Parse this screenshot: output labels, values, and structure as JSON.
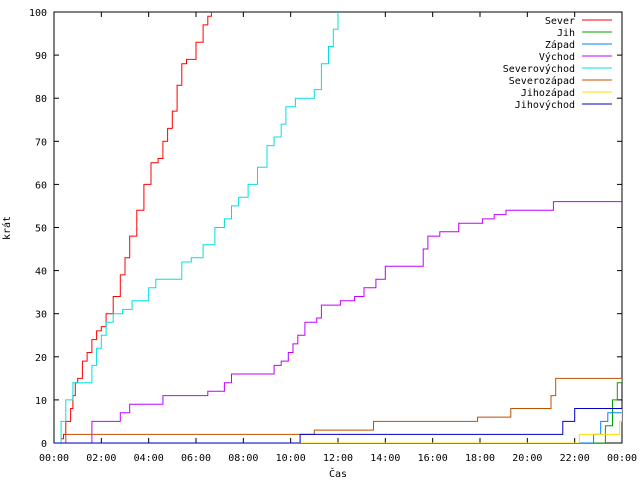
{
  "chart_data": {
    "type": "line",
    "xlabel": "Čas",
    "ylabel": "krát",
    "xlim": [
      0,
      24
    ],
    "ylim": [
      0,
      100
    ],
    "grid": false,
    "legend_position": "top-right",
    "x_ticks": [
      {
        "value": 0,
        "label": "00:00"
      },
      {
        "value": 2,
        "label": "02:00"
      },
      {
        "value": 4,
        "label": "04:00"
      },
      {
        "value": 6,
        "label": "06:00"
      },
      {
        "value": 8,
        "label": "08:00"
      },
      {
        "value": 10,
        "label": "10:00"
      },
      {
        "value": 12,
        "label": "12:00"
      },
      {
        "value": 14,
        "label": "14:00"
      },
      {
        "value": 16,
        "label": "16:00"
      },
      {
        "value": 18,
        "label": "18:00"
      },
      {
        "value": 20,
        "label": "20:00"
      },
      {
        "value": 22,
        "label": "22:00"
      },
      {
        "value": 24,
        "label": "00:00"
      }
    ],
    "y_ticks": [
      0,
      10,
      20,
      30,
      40,
      50,
      60,
      70,
      80,
      90,
      100
    ],
    "series": [
      {
        "name": "Sever",
        "color": "#ff0000",
        "x": [
          0.3,
          0.4,
          0.5,
          0.7,
          0.8,
          0.9,
          1.0,
          1.2,
          1.4,
          1.6,
          1.8,
          2.0,
          2.2,
          2.5,
          2.8,
          3.0,
          3.2,
          3.5,
          3.8,
          4.1,
          4.4,
          4.6,
          4.8,
          5.0,
          5.2,
          5.4,
          5.6,
          5.8,
          6.0,
          6.3,
          6.5,
          6.65
        ],
        "y": [
          1,
          2,
          5,
          8,
          11,
          14,
          15,
          19,
          21,
          24,
          26,
          27,
          30,
          34,
          39,
          43,
          48,
          54,
          60,
          65,
          66,
          70,
          73,
          77,
          83,
          88,
          89,
          89,
          93,
          97,
          99,
          100
        ]
      },
      {
        "name": "Jih",
        "color": "#00a000",
        "x": [
          0,
          23.0,
          23.3,
          23.6,
          23.8,
          24
        ],
        "y": [
          0,
          0,
          4,
          10,
          14,
          15
        ]
      },
      {
        "name": "Západ",
        "color": "#0080ff",
        "x": [
          0,
          22.5,
          22.8,
          23.1,
          23.4,
          24
        ],
        "y": [
          0,
          0,
          2,
          5,
          7,
          8
        ]
      },
      {
        "name": "Východ",
        "color": "#c000ff",
        "x": [
          0.5,
          1.5,
          1.6,
          2.5,
          2.8,
          3.2,
          4.6,
          5.9,
          6.5,
          7.2,
          7.5,
          8.1,
          9.1,
          9.3,
          9.6,
          9.9,
          10.1,
          10.3,
          10.6,
          11.1,
          11.3,
          11.7,
          12.1,
          12.7,
          13.1,
          13.6,
          14.0,
          14.3,
          15.2,
          15.6,
          15.8,
          16.3,
          17.1,
          17.7,
          18.1,
          18.6,
          19.1,
          20.1,
          21.0,
          21.1,
          22.1,
          24.0
        ],
        "y": [
          0,
          0,
          5,
          5,
          7,
          9,
          11,
          11,
          12,
          14,
          16,
          16,
          16,
          18,
          19,
          21,
          23,
          25,
          28,
          29,
          32,
          32,
          33,
          34,
          36,
          38,
          41,
          41,
          41,
          45,
          48,
          49,
          51,
          51,
          52,
          53,
          54,
          54,
          54,
          56,
          56,
          56
        ]
      },
      {
        "name": "Severovýchod",
        "color": "#00e0e0",
        "x": [
          0.1,
          0.3,
          0.5,
          0.8,
          1.3,
          1.6,
          1.8,
          2.0,
          2.2,
          2.5,
          2.9,
          3.3,
          4.0,
          4.3,
          4.8,
          5.4,
          5.8,
          6.3,
          6.8,
          7.2,
          7.5,
          7.8,
          8.2,
          8.6,
          9.0,
          9.3,
          9.6,
          9.8,
          10.2,
          10.6,
          11.0,
          11.3,
          11.6,
          11.8,
          12.0
        ],
        "y": [
          0,
          5,
          10,
          14,
          14,
          18,
          22,
          25,
          28,
          30,
          31,
          33,
          36,
          38,
          38,
          42,
          43,
          46,
          50,
          52,
          55,
          57,
          60,
          64,
          69,
          71,
          74,
          78,
          80,
          80,
          82,
          88,
          92,
          96,
          100
        ]
      },
      {
        "name": "Severozápad",
        "color": "#c05000",
        "x": [
          0.4,
          0.5,
          10.6,
          11.0,
          13.1,
          13.5,
          17.5,
          17.9,
          19.0,
          19.3,
          20.9,
          21.0,
          21.2,
          24.0
        ],
        "y": [
          0,
          2,
          2,
          3,
          3,
          5,
          5,
          6,
          6,
          8,
          8,
          11,
          15,
          15
        ]
      },
      {
        "name": "Jihozápad",
        "color": "#ffe000",
        "x": [
          0,
          12.3,
          22.2,
          23.5,
          23.9,
          24
        ],
        "y": [
          0,
          0,
          2,
          2,
          5,
          8
        ]
      },
      {
        "name": "Jihovýchod",
        "color": "#0000c0",
        "x": [
          0,
          10.3,
          10.4,
          21.4,
          21.5,
          21.9,
          22.0,
          24.0
        ],
        "y": [
          0,
          0,
          2,
          2,
          5,
          5,
          8,
          8
        ]
      }
    ]
  }
}
